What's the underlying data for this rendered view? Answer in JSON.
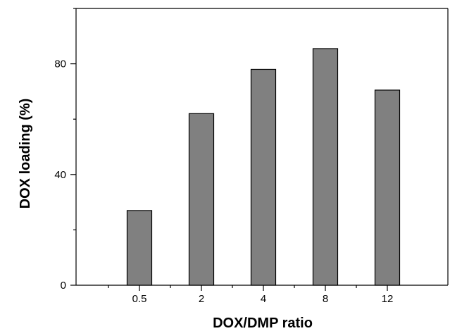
{
  "chart_data": {
    "type": "bar",
    "categories": [
      "0.5",
      "2",
      "4",
      "8",
      "12"
    ],
    "values": [
      27,
      62,
      78,
      85.5,
      70.5
    ],
    "xlabel": "DOX/DMP ratio",
    "ylabel": "DOX loading (%)",
    "ylim": [
      0,
      100
    ],
    "yticks_major": [
      0,
      40,
      80
    ],
    "yticks_minor": [
      20,
      60,
      100
    ],
    "ytick_labels": [
      "0",
      "40",
      "80"
    ],
    "grid": false,
    "legend": "none",
    "colors": {
      "bar": "#808080",
      "axis": "#000000"
    }
  }
}
